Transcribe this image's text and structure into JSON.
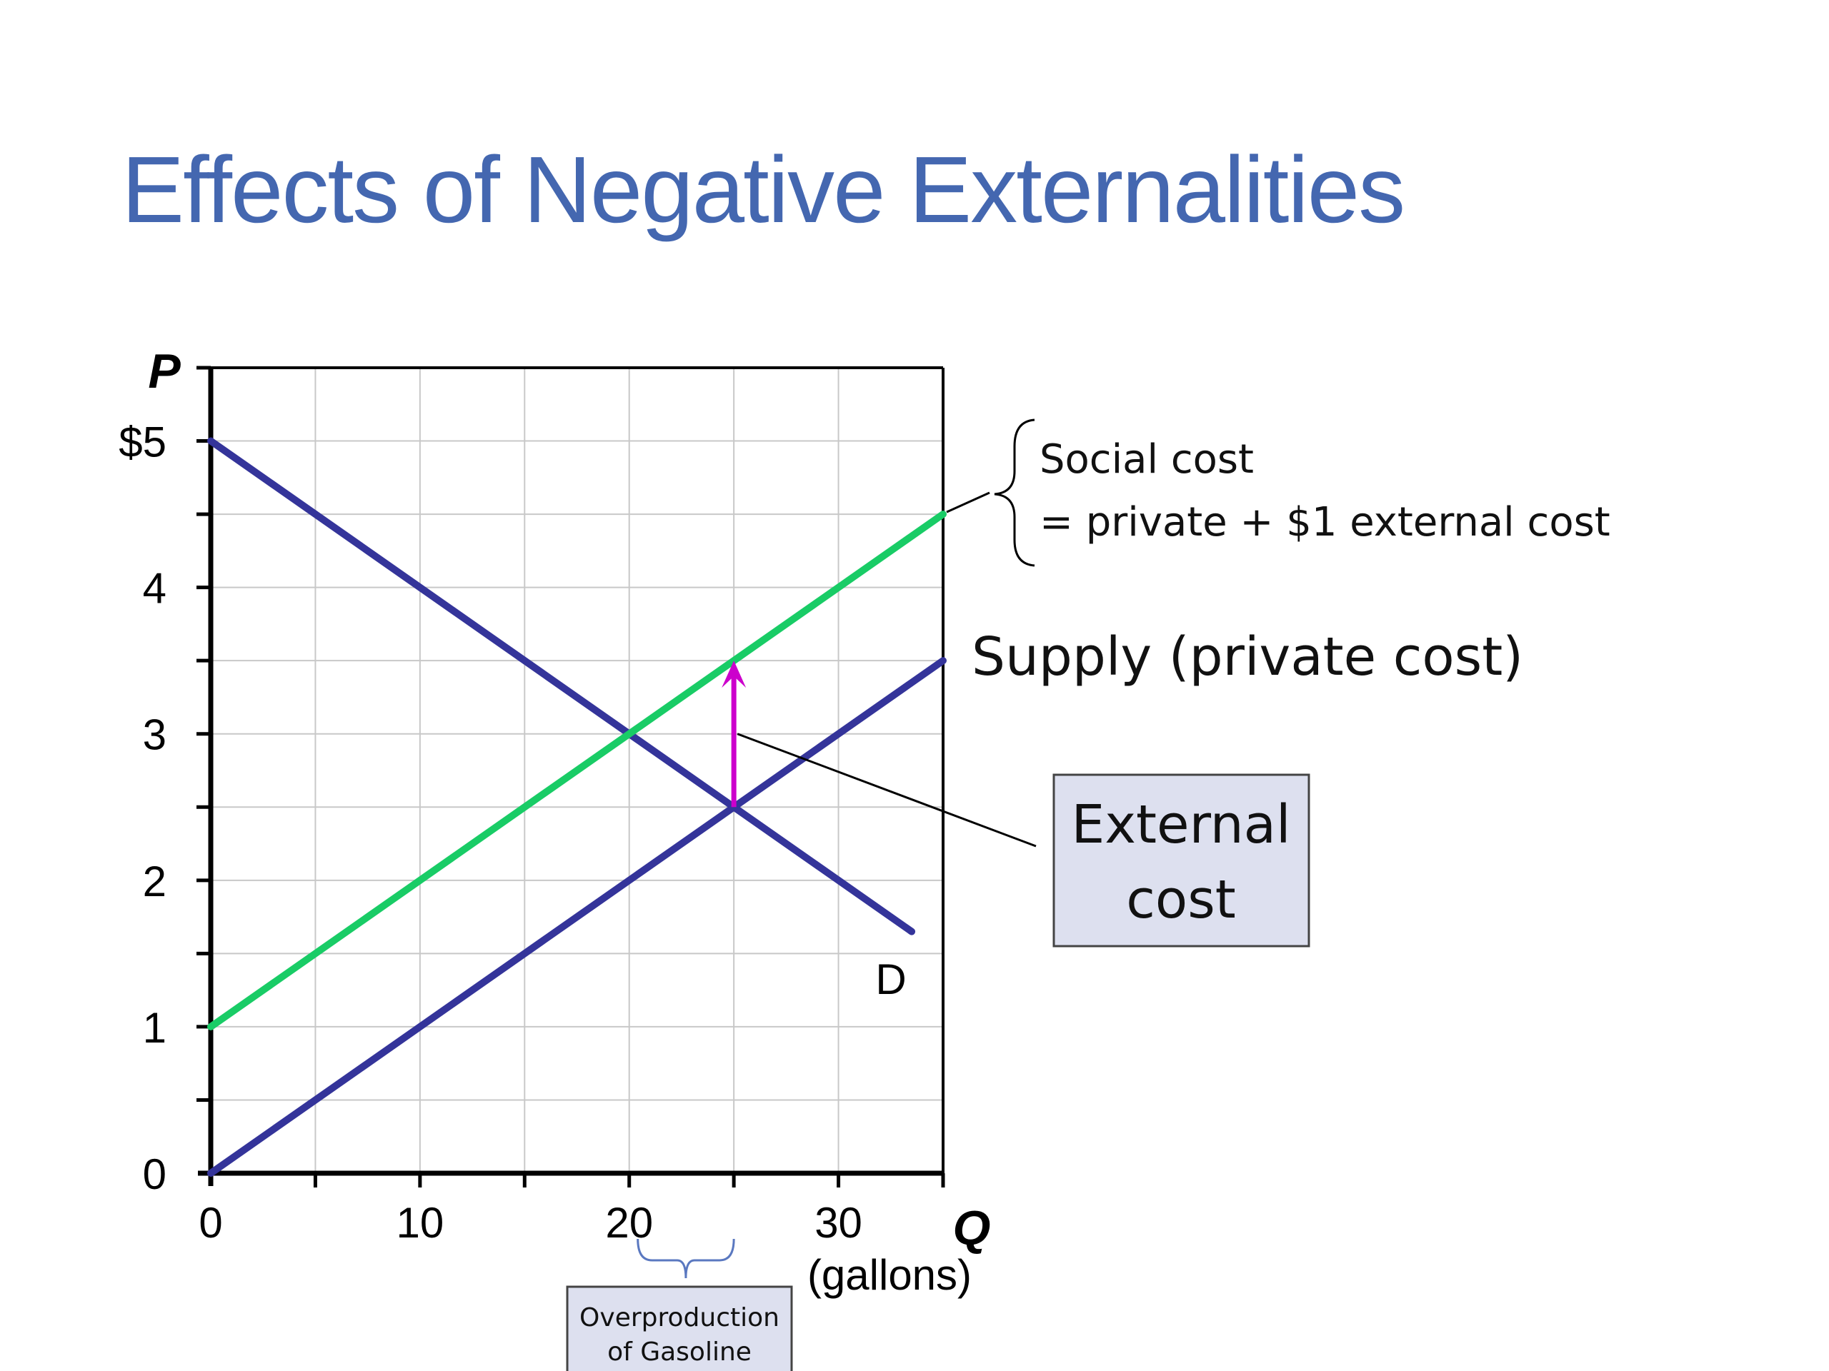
{
  "slide": {
    "title": "Effects of Negative Externalities"
  },
  "colors": {
    "curve_blue": "#34349a",
    "curve_green": "#19cc66",
    "arrow_magenta": "#cc00cc",
    "social_cost_label": "#8b1a8b",
    "box_fill": "#dde0ef",
    "box_border": "#444444",
    "grid": "#c8c8c8"
  },
  "chart_data": {
    "type": "line",
    "title": "",
    "xlabel": "Q",
    "xlabel_unit": "(gallons)",
    "ylabel": "P",
    "xlim": [
      0,
      35
    ],
    "ylim": [
      0,
      5.5
    ],
    "x_ticks": [
      0,
      10,
      20,
      30
    ],
    "x_tick_labels": [
      "0",
      "10",
      "20",
      "30"
    ],
    "y_ticks": [
      0,
      1,
      2,
      3,
      4,
      5
    ],
    "y_tick_labels": [
      "0",
      "1",
      "2",
      "3",
      "4",
      "$5"
    ],
    "grid": true,
    "series": [
      {
        "id": "demand",
        "name": "D",
        "color": "#34349a",
        "x": [
          0,
          33.5
        ],
        "y": [
          5,
          1.65
        ]
      },
      {
        "id": "supply",
        "name": "Supply (private cost)",
        "color": "#34349a",
        "x": [
          0,
          35
        ],
        "y": [
          0,
          3.5
        ]
      },
      {
        "id": "social",
        "name": "Social cost",
        "color": "#19cc66",
        "x": [
          0,
          35
        ],
        "y": [
          1,
          4.5
        ]
      }
    ],
    "external_cost_arrow": {
      "x": 25,
      "y_from": 2.5,
      "y_to": 3.5,
      "color": "#cc00cc"
    },
    "annotations": {
      "social_cost_title": "Social cost",
      "social_cost_detail": "= private + $1 external cost",
      "supply_label": "Supply (private cost)",
      "demand_label": "D",
      "external_cost_box": [
        "External",
        "cost"
      ],
      "overproduction_box": [
        "Overproduction",
        "of Gasoline"
      ],
      "overproduction_range": [
        20,
        25
      ]
    }
  }
}
